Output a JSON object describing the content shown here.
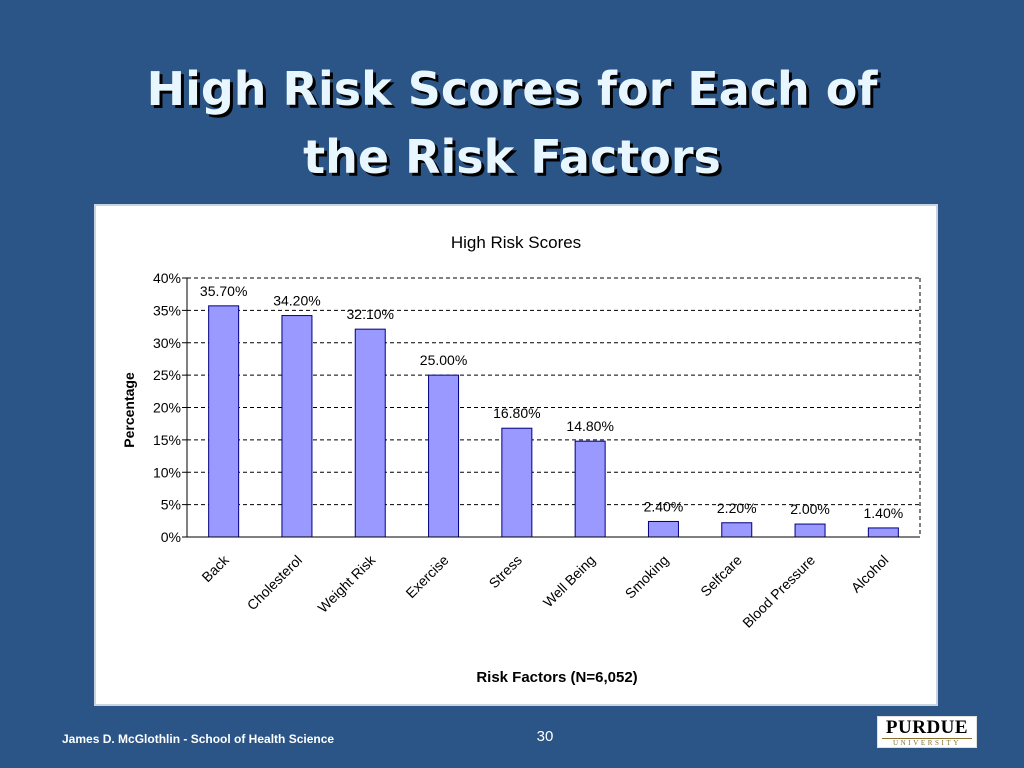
{
  "slide": {
    "title_line1": "High Risk Scores for Each of",
    "title_line2": "the Risk Factors",
    "footer": "James D. McGlothlin - School of Health Science",
    "page_number": "30",
    "logo_main": "PURDUE",
    "logo_sub": "UNIVERSITY"
  },
  "colors": {
    "background": "#2b5587",
    "bar_fill": "#9999ff",
    "bar_stroke": "#000080",
    "grid": "#000000"
  },
  "chart_data": {
    "type": "bar",
    "title": "High Risk Scores",
    "xlabel": "Risk Factors (N=6,052)",
    "ylabel": "Percentage",
    "categories": [
      "Back",
      "Cholesterol",
      "Weight Risk",
      "Exercise",
      "Stress",
      "Well Being",
      "Smoking",
      "Selfcare",
      "Blood Pressure",
      "Alcohol"
    ],
    "values": [
      35.7,
      34.2,
      32.1,
      25.0,
      16.8,
      14.8,
      2.4,
      2.2,
      2.0,
      1.4
    ],
    "data_labels": [
      "35.70%",
      "34.20%",
      "32.10%",
      "25.00%",
      "16.80%",
      "14.80%",
      "2.40%",
      "2.20%",
      "2.00%",
      "1.40%"
    ],
    "ylim": [
      0,
      40
    ],
    "yticks": [
      0,
      5,
      10,
      15,
      20,
      25,
      30,
      35,
      40
    ],
    "ytick_labels": [
      "0%",
      "5%",
      "10%",
      "15%",
      "20%",
      "25%",
      "30%",
      "35%",
      "40%"
    ],
    "grid": true,
    "legend": false
  }
}
